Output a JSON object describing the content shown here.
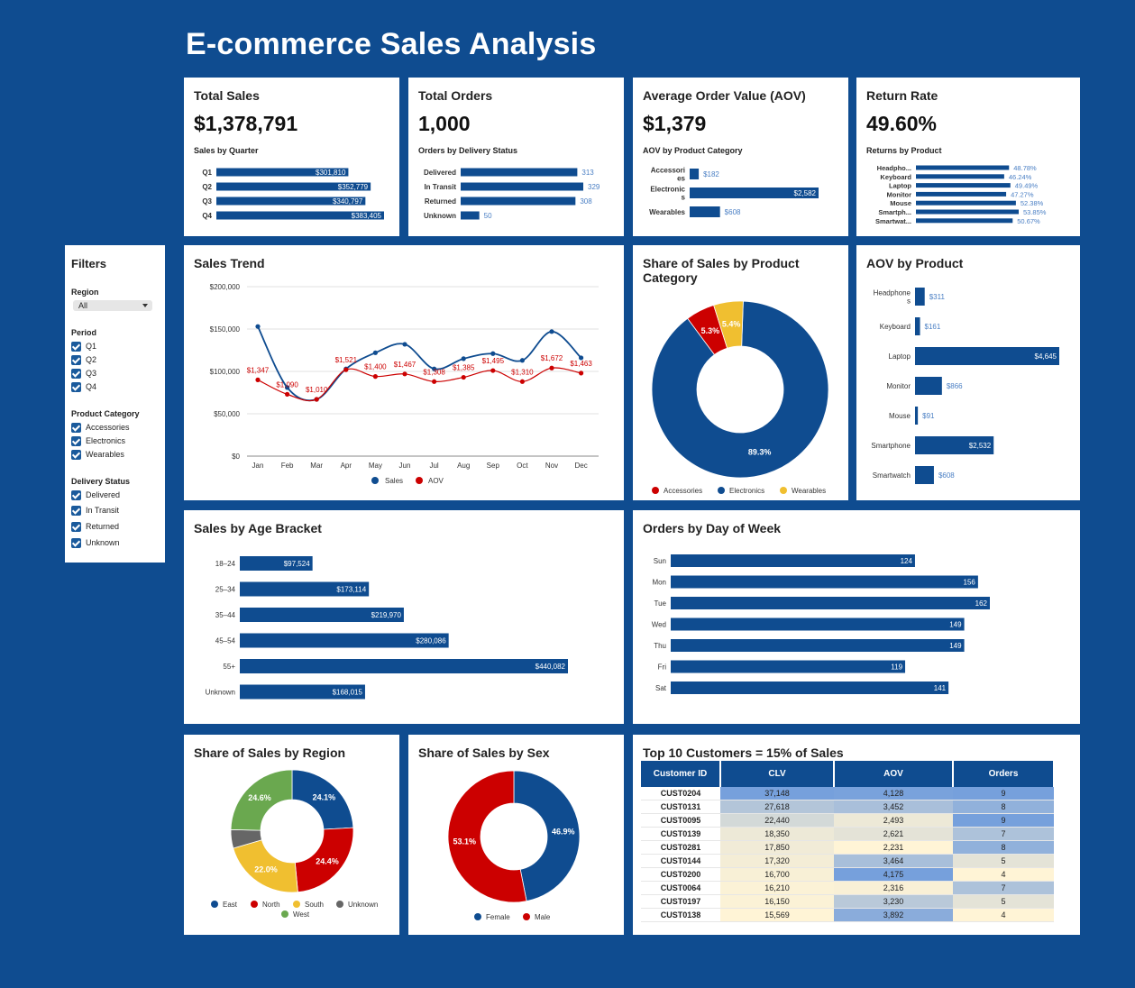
{
  "title": "E-commerce Sales Analysis",
  "colors": {
    "blue": "#0f4c90",
    "red": "#cc0000",
    "yellow": "#f0bf30",
    "green": "#6aa84f",
    "gray": "#666666"
  },
  "kpis": {
    "sales": {
      "title": "Total Sales",
      "value": "$1,378,791",
      "subtitle": "Sales by Quarter",
      "chart_data": {
        "type": "bar",
        "orientation": "horizontal",
        "categories": [
          "Q1",
          "Q2",
          "Q3",
          "Q4"
        ],
        "values": [
          301810,
          352779,
          340797,
          383405
        ],
        "labels": [
          "$301,810",
          "$352,779",
          "$340,797",
          "$383,405"
        ]
      }
    },
    "orders": {
      "title": "Total Orders",
      "value": "1,000",
      "subtitle": "Orders by Delivery Status",
      "chart_data": {
        "type": "bar",
        "orientation": "horizontal",
        "categories": [
          "Delivered",
          "In Transit",
          "Returned",
          "Unknown"
        ],
        "values": [
          313,
          329,
          308,
          50
        ],
        "labels": [
          "313",
          "329",
          "308",
          "50"
        ]
      }
    },
    "aov": {
      "title": "Average Order Value (AOV)",
      "value": "$1,379",
      "subtitle": "AOV by Product Category",
      "chart_data": {
        "type": "bar",
        "orientation": "horizontal",
        "categories": [
          [
            "Accessori",
            "es"
          ],
          [
            "Electronic",
            "s"
          ],
          [
            "Wearables"
          ]
        ],
        "values": [
          182,
          2582,
          608
        ],
        "labels": [
          "$182",
          "$2,582",
          "$608"
        ]
      }
    },
    "returns": {
      "title": "Return Rate",
      "value": "49.60%",
      "subtitle": "Returns by Product",
      "chart_data": {
        "type": "bar",
        "orientation": "horizontal",
        "categories": [
          "Headpho...",
          "Keyboard",
          "Laptop",
          "Monitor",
          "Mouse",
          "Smartph...",
          "Smartwat..."
        ],
        "values": [
          48.78,
          46.24,
          49.49,
          47.27,
          52.38,
          53.85,
          50.67
        ],
        "labels": [
          "48.78%",
          "46.24%",
          "49.49%",
          "47.27%",
          "52.38%",
          "53.85%",
          "50.67%"
        ]
      }
    }
  },
  "filters": {
    "title": "Filters",
    "region_label": "Region",
    "region_value": "All",
    "period_label": "Period",
    "periods": [
      "Q1",
      "Q2",
      "Q3",
      "Q4"
    ],
    "category_label": "Product Category",
    "categories": [
      "Accessories",
      "Electronics",
      "Wearables"
    ],
    "delivery_label": "Delivery Status",
    "delivery": [
      "Delivered",
      "In Transit",
      "Returned",
      "Unknown"
    ]
  },
  "trend": {
    "title": "Sales Trend",
    "chart_data": {
      "type": "line",
      "categories": [
        "Jan",
        "Feb",
        "Mar",
        "Apr",
        "May",
        "Jun",
        "Jul",
        "Aug",
        "Sep",
        "Oct",
        "Nov",
        "Dec"
      ],
      "yticks": [
        "$200,000",
        "$150,000",
        "$100,000",
        "$50,000",
        "$0"
      ],
      "ylim": [
        0,
        200000
      ],
      "series": [
        {
          "name": "Sales",
          "values": [
            153000,
            81000,
            67000,
            103000,
            122000,
            132000,
            103000,
            115000,
            121000,
            113000,
            147000,
            116000
          ]
        },
        {
          "name": "AOV",
          "values": [
            90000,
            73000,
            67000,
            102000,
            94000,
            97000,
            88000,
            93000,
            101000,
            88000,
            104000,
            98000
          ],
          "labels": [
            "$1,347",
            "$1,090",
            "$1,010",
            "$1,521",
            "$1,400",
            "$1,467",
            "$1,308",
            "$1,385",
            "$1,495",
            "$1,310",
            "$1,672",
            "$1,463"
          ]
        }
      ]
    },
    "legend": [
      "Sales",
      "AOV"
    ]
  },
  "category_share": {
    "title": "Share of Sales by Product Category",
    "chart_data": {
      "type": "pie",
      "donut": true,
      "categories": [
        "Electronics",
        "Accessories",
        "Wearables"
      ],
      "values": [
        89.3,
        5.3,
        5.4
      ],
      "labels": [
        "89.3%",
        "5.3%",
        "5.4%"
      ]
    },
    "legend": [
      "Accessories",
      "Electronics",
      "Wearables"
    ]
  },
  "aov_product": {
    "title": "AOV by Product",
    "chart_data": {
      "type": "bar",
      "orientation": "horizontal",
      "categories": [
        [
          "Headphone",
          "s"
        ],
        [
          "Keyboard"
        ],
        [
          "Laptop"
        ],
        [
          "Monitor"
        ],
        [
          "Mouse"
        ],
        [
          "Smartphone"
        ],
        [
          "Smartwatch"
        ]
      ],
      "values": [
        311,
        161,
        4645,
        866,
        91,
        2532,
        608
      ],
      "labels": [
        "$311",
        "$161",
        "$4,645",
        "$866",
        "$91",
        "$2,532",
        "$608"
      ]
    }
  },
  "age": {
    "title": "Sales by Age Bracket",
    "chart_data": {
      "type": "bar",
      "orientation": "horizontal",
      "categories": [
        "18–24",
        "25–34",
        "35–44",
        "45–54",
        "55+",
        "Unknown"
      ],
      "values": [
        97524,
        173114,
        219970,
        280086,
        440082,
        168015
      ],
      "labels": [
        "$97,524",
        "$173,114",
        "$219,970",
        "$280,086",
        "$440,082",
        "$168,015"
      ]
    }
  },
  "dow": {
    "title": "Orders by Day of Week",
    "chart_data": {
      "type": "bar",
      "orientation": "horizontal",
      "categories": [
        "Sun",
        "Mon",
        "Tue",
        "Wed",
        "Thu",
        "Fri",
        "Sat"
      ],
      "values": [
        124,
        156,
        162,
        149,
        149,
        119,
        141
      ],
      "labels": [
        "124",
        "156",
        "162",
        "149",
        "149",
        "119",
        "141"
      ]
    }
  },
  "region": {
    "title": "Share of Sales by Region",
    "chart_data": {
      "type": "pie",
      "donut": true,
      "categories": [
        "East",
        "North",
        "South",
        "Unknown",
        "West"
      ],
      "values": [
        24.1,
        24.4,
        22.0,
        4.9,
        24.6
      ],
      "labels": [
        "24.1%",
        "24.4%",
        "22.0%",
        "",
        "24.6%"
      ]
    },
    "legend": [
      "East",
      "North",
      "South",
      "Unknown",
      "West"
    ]
  },
  "sex": {
    "title": "Share of Sales by Sex",
    "chart_data": {
      "type": "pie",
      "donut": true,
      "categories": [
        "Female",
        "Male"
      ],
      "values": [
        46.9,
        53.1
      ],
      "labels": [
        "46.9%",
        "53.1%"
      ]
    },
    "legend": [
      "Female",
      "Male"
    ]
  },
  "customers": {
    "title": "Top 10 Customers = 15% of Sales",
    "headers": [
      "Customer ID",
      "CLV",
      "AOV",
      "Orders"
    ],
    "rows": [
      [
        "CUST0204",
        "37,148",
        "4,128",
        "9"
      ],
      [
        "CUST0131",
        "27,618",
        "3,452",
        "8"
      ],
      [
        "CUST0095",
        "22,440",
        "2,493",
        "9"
      ],
      [
        "CUST0139",
        "18,350",
        "2,621",
        "7"
      ],
      [
        "CUST0281",
        "17,850",
        "2,231",
        "8"
      ],
      [
        "CUST0144",
        "17,320",
        "3,464",
        "5"
      ],
      [
        "CUST0200",
        "16,700",
        "4,175",
        "4"
      ],
      [
        "CUST0064",
        "16,210",
        "2,316",
        "7"
      ],
      [
        "CUST0197",
        "16,150",
        "3,230",
        "5"
      ],
      [
        "CUST0138",
        "15,569",
        "3,892",
        "4"
      ]
    ]
  }
}
